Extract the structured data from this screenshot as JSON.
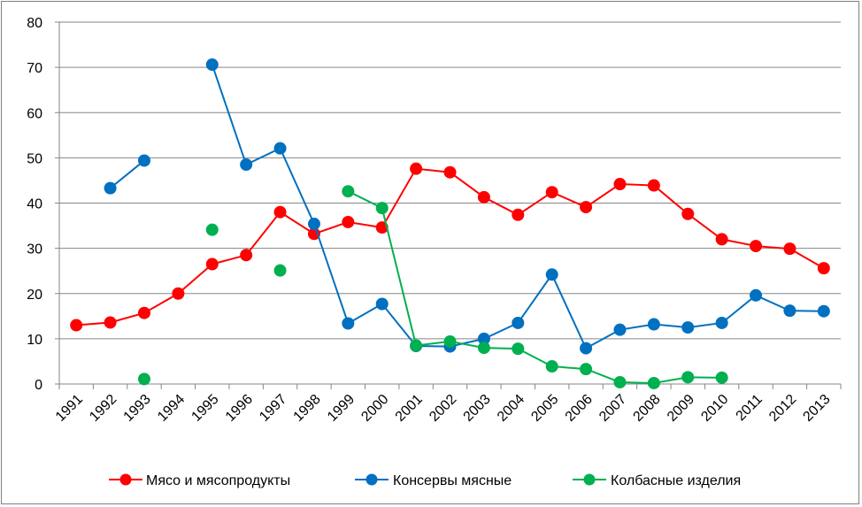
{
  "chart_data": {
    "type": "line",
    "title": "",
    "xlabel": "",
    "ylabel": "",
    "ylim": [
      0,
      80
    ],
    "yticks": [
      0,
      10,
      20,
      30,
      40,
      50,
      60,
      70,
      80
    ],
    "grid": "horizontal",
    "legend_position": "bottom",
    "categories": [
      "1991",
      "1992",
      "1993",
      "1994",
      "1995",
      "1996",
      "1997",
      "1998",
      "1999",
      "2000",
      "2001",
      "2002",
      "2003",
      "2004",
      "2005",
      "2006",
      "2007",
      "2008",
      "2009",
      "2010",
      "2011",
      "2012",
      "2013"
    ],
    "series": [
      {
        "name": "Мясо и мясопродукты",
        "color": "#ff0000",
        "values": [
          13.0,
          13.6,
          15.7,
          20.0,
          26.5,
          28.5,
          38.0,
          33.2,
          35.8,
          34.6,
          47.6,
          46.8,
          41.3,
          37.4,
          42.4,
          39.1,
          44.2,
          43.9,
          37.6,
          32.0,
          30.5,
          29.9,
          25.6
        ]
      },
      {
        "name": "Консервы мясные",
        "color": "#0070c0",
        "values": [
          null,
          43.3,
          49.4,
          null,
          70.6,
          48.5,
          52.1,
          35.4,
          13.4,
          17.7,
          8.4,
          8.3,
          10.0,
          13.5,
          24.2,
          7.9,
          12.0,
          13.2,
          12.5,
          13.5,
          19.6,
          16.2,
          16.1
        ]
      },
      {
        "name": "Колбасные изделия",
        "color": "#00b050",
        "values": [
          null,
          null,
          1.1,
          null,
          34.1,
          null,
          25.1,
          null,
          42.6,
          38.9,
          8.5,
          9.4,
          8.0,
          7.8,
          3.9,
          3.3,
          0.4,
          0.2,
          1.5,
          1.4,
          null,
          null,
          null
        ]
      }
    ]
  }
}
